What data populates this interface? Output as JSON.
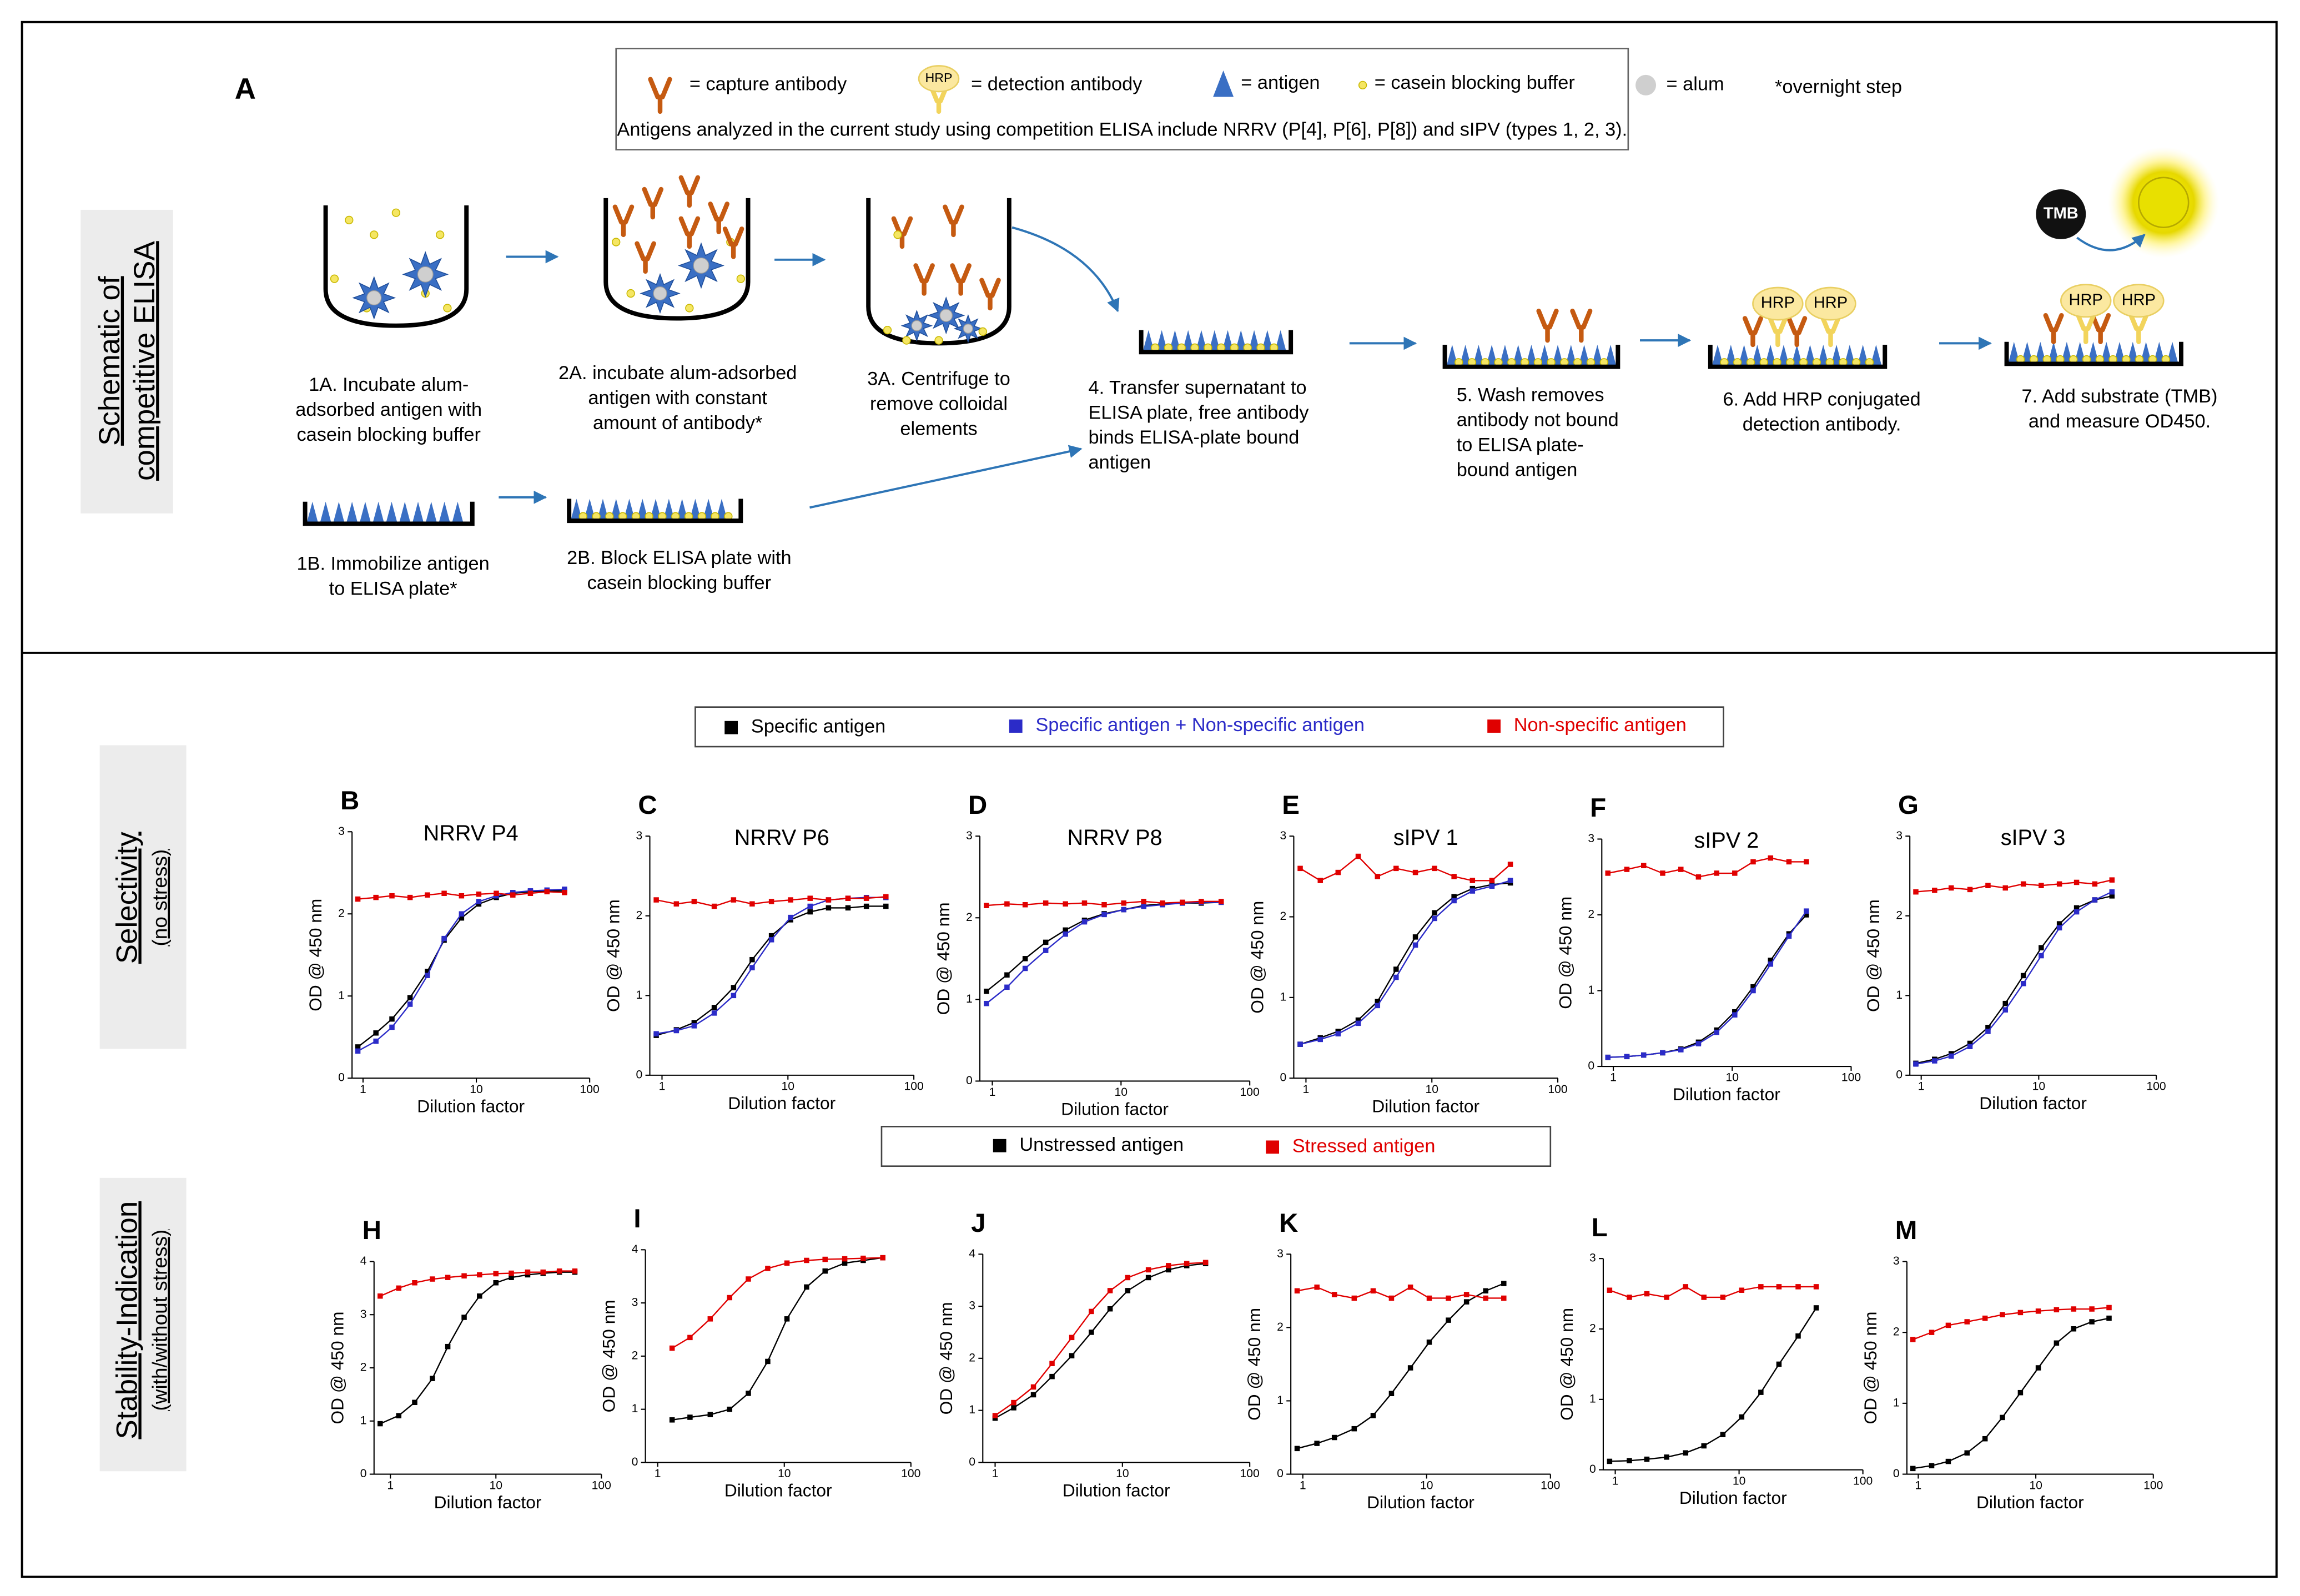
{
  "panel_a": {
    "letter": "A",
    "key": [
      "= capture antibody",
      "= detection antibody",
      "= antigen",
      "= casein blocking buffer",
      "= alum",
      "*overnight step"
    ],
    "note": "Antigens analyzed in the current study using competition ELISA include NRRV (P[4], P[6], P[8]) and sIPV (types 1, 2, 3).",
    "section_label": [
      "Schematic of",
      "competitive ELISA"
    ],
    "icon_labels": {
      "hrp": "HRP",
      "tmb": "TMB"
    },
    "steps": [
      {
        "lines": [
          "1A. Incubate alum-",
          "adsorbed antigen with",
          "casein blocking buffer"
        ]
      },
      {
        "lines": [
          "2A. incubate alum-adsorbed",
          "antigen with constant",
          "amount of antibody*"
        ]
      },
      {
        "lines": [
          "3A. Centrifuge to",
          "remove colloidal",
          "elements"
        ]
      },
      {
        "lines": [
          "4. Transfer supernatant to",
          "ELISA plate, free antibody",
          "binds ELISA-plate bound",
          "antigen"
        ]
      },
      {
        "lines": [
          "5. Wash removes",
          "antibody not bound",
          "to ELISA plate-",
          "bound antigen"
        ]
      },
      {
        "lines": [
          "6. Add HRP conjugated",
          "detection antibody."
        ]
      },
      {
        "lines": [
          "7. Add substrate (TMB)",
          "and measure OD450."
        ]
      },
      {
        "lines": [
          "1B. Immobilize antigen",
          "to ELISA plate*"
        ]
      },
      {
        "lines": [
          "2B. Block ELISA plate with",
          "casein blocking buffer"
        ]
      }
    ]
  },
  "section_labels": {
    "selectivity": [
      "Selectivity",
      "(no stress)"
    ],
    "stability": [
      "Stability-Indication",
      "(with/without stress)"
    ]
  },
  "chart_data": [
    {
      "type": "line",
      "title": "B",
      "subtitle": "NRRV P4",
      "xlabel": "Dilution factor",
      "ylabel": "OD @ 450 nm",
      "log_x": true,
      "x": [
        0.9,
        1.3,
        1.8,
        2.6,
        3.7,
        5.2,
        7.4,
        10.5,
        15,
        21,
        30,
        42,
        60
      ],
      "series": [
        {
          "name": "Specific antigen",
          "color": "#000000",
          "values": [
            0.38,
            0.55,
            0.72,
            0.98,
            1.3,
            1.68,
            1.95,
            2.12,
            2.2,
            2.25,
            2.27,
            2.28,
            2.28
          ]
        },
        {
          "name": "Specific antigen + Non-specific antigen",
          "color": "#2b2bc8",
          "values": [
            0.33,
            0.45,
            0.62,
            0.9,
            1.25,
            1.7,
            2.0,
            2.15,
            2.22,
            2.26,
            2.28,
            2.29,
            2.3
          ]
        },
        {
          "name": "Non-specific antigen",
          "color": "#e00000",
          "values": [
            2.18,
            2.2,
            2.22,
            2.2,
            2.23,
            2.25,
            2.22,
            2.24,
            2.25,
            2.23,
            2.25,
            2.27,
            2.26
          ]
        }
      ],
      "xlim": [
        0.8,
        100
      ],
      "xticks": [
        1,
        10,
        100
      ],
      "ylim": [
        0,
        3
      ],
      "yticks": [
        0,
        1,
        2,
        3
      ]
    },
    {
      "type": "line",
      "title": "C",
      "subtitle": "NRRV P6",
      "xlabel": "Dilution factor",
      "ylabel": "OD @ 450 nm",
      "log_x": true,
      "x": [
        0.9,
        1.3,
        1.8,
        2.6,
        3.7,
        5.2,
        7.4,
        10.5,
        15,
        21,
        30,
        42,
        60
      ],
      "series": [
        {
          "color": "#000000",
          "values": [
            0.5,
            0.57,
            0.66,
            0.85,
            1.1,
            1.45,
            1.75,
            1.95,
            2.05,
            2.1,
            2.1,
            2.12,
            2.12
          ]
        },
        {
          "color": "#2b2bc8",
          "values": [
            0.52,
            0.56,
            0.62,
            0.78,
            1.0,
            1.35,
            1.7,
            1.98,
            2.12,
            2.2,
            2.22,
            2.23,
            2.23
          ]
        },
        {
          "color": "#e00000",
          "values": [
            2.2,
            2.15,
            2.18,
            2.12,
            2.2,
            2.15,
            2.18,
            2.2,
            2.22,
            2.2,
            2.22,
            2.22,
            2.24
          ]
        }
      ],
      "xlim": [
        0.8,
        100
      ],
      "xticks": [
        1,
        10,
        100
      ],
      "ylim": [
        0,
        3
      ],
      "yticks": [
        0,
        1,
        2,
        3
      ]
    },
    {
      "type": "line",
      "title": "D",
      "subtitle": "NRRV P8",
      "xlabel": "Dilution factor",
      "ylabel": "OD @ 450 nm",
      "log_x": true,
      "x": [
        0.9,
        1.3,
        1.8,
        2.6,
        3.7,
        5.2,
        7.4,
        10.5,
        15,
        21,
        30,
        42,
        60
      ],
      "series": [
        {
          "color": "#000000",
          "values": [
            1.1,
            1.3,
            1.5,
            1.7,
            1.85,
            1.97,
            2.05,
            2.1,
            2.15,
            2.17,
            2.18,
            2.18,
            2.19
          ]
        },
        {
          "color": "#2b2bc8",
          "values": [
            0.95,
            1.15,
            1.38,
            1.6,
            1.8,
            1.95,
            2.04,
            2.1,
            2.14,
            2.16,
            2.18,
            2.19,
            2.19
          ]
        },
        {
          "color": "#e00000",
          "values": [
            2.15,
            2.17,
            2.16,
            2.18,
            2.17,
            2.18,
            2.16,
            2.18,
            2.2,
            2.18,
            2.19,
            2.2,
            2.2
          ]
        }
      ],
      "xlim": [
        0.8,
        100
      ],
      "xticks": [
        1,
        10,
        100
      ],
      "ylim": [
        0,
        3
      ],
      "yticks": [
        0,
        1,
        2,
        3
      ]
    },
    {
      "type": "line",
      "title": "E",
      "subtitle": "sIPV 1",
      "xlabel": "Dilution factor",
      "ylabel": "OD @ 450 nm",
      "log_x": true,
      "x": [
        0.9,
        1.3,
        1.8,
        2.6,
        3.7,
        5.2,
        7.4,
        10.5,
        15,
        21,
        30,
        42
      ],
      "series": [
        {
          "color": "#000000",
          "values": [
            0.42,
            0.5,
            0.58,
            0.72,
            0.95,
            1.35,
            1.75,
            2.05,
            2.25,
            2.35,
            2.4,
            2.42
          ]
        },
        {
          "color": "#2b2bc8",
          "values": [
            0.42,
            0.48,
            0.55,
            0.68,
            0.9,
            1.25,
            1.65,
            1.98,
            2.2,
            2.32,
            2.38,
            2.45
          ]
        },
        {
          "color": "#e00000",
          "values": [
            2.6,
            2.45,
            2.55,
            2.75,
            2.5,
            2.6,
            2.55,
            2.6,
            2.5,
            2.45,
            2.45,
            2.65
          ]
        }
      ],
      "xlim": [
        0.8,
        100
      ],
      "xticks": [
        1,
        10,
        100
      ],
      "ylim": [
        0,
        3
      ],
      "yticks": [
        0,
        1,
        2,
        3
      ]
    },
    {
      "type": "line",
      "title": "F",
      "subtitle": "sIPV 2",
      "xlabel": "Dilution factor",
      "ylabel": "OD @ 450 nm",
      "log_x": true,
      "x": [
        0.9,
        1.3,
        1.8,
        2.6,
        3.7,
        5.2,
        7.4,
        10.5,
        15,
        21,
        30,
        42
      ],
      "series": [
        {
          "color": "#000000",
          "values": [
            0.12,
            0.13,
            0.15,
            0.18,
            0.23,
            0.32,
            0.48,
            0.72,
            1.05,
            1.4,
            1.75,
            2.0
          ]
        },
        {
          "color": "#2b2bc8",
          "values": [
            0.12,
            0.13,
            0.15,
            0.18,
            0.22,
            0.3,
            0.45,
            0.68,
            1.0,
            1.35,
            1.72,
            2.05
          ]
        },
        {
          "color": "#e00000",
          "values": [
            2.55,
            2.6,
            2.65,
            2.55,
            2.6,
            2.5,
            2.55,
            2.55,
            2.7,
            2.75,
            2.7,
            2.7
          ]
        }
      ],
      "xlim": [
        0.8,
        100
      ],
      "xticks": [
        1,
        10,
        100
      ],
      "ylim": [
        0,
        3
      ],
      "yticks": [
        0,
        1,
        2,
        3
      ]
    },
    {
      "type": "line",
      "title": "G",
      "subtitle": "sIPV 3",
      "xlabel": "Dilution factor",
      "ylabel": "OD @ 450 nm",
      "log_x": true,
      "x": [
        0.9,
        1.3,
        1.8,
        2.6,
        3.7,
        5.2,
        7.4,
        10.5,
        15,
        21,
        30,
        42
      ],
      "series": [
        {
          "color": "#000000",
          "values": [
            0.15,
            0.2,
            0.27,
            0.4,
            0.6,
            0.9,
            1.25,
            1.6,
            1.9,
            2.1,
            2.2,
            2.25
          ]
        },
        {
          "color": "#2b2bc8",
          "values": [
            0.14,
            0.18,
            0.24,
            0.36,
            0.55,
            0.82,
            1.15,
            1.5,
            1.85,
            2.05,
            2.2,
            2.3
          ]
        },
        {
          "color": "#e00000",
          "values": [
            2.3,
            2.32,
            2.35,
            2.33,
            2.38,
            2.35,
            2.4,
            2.38,
            2.4,
            2.42,
            2.4,
            2.45
          ]
        }
      ],
      "xlim": [
        0.8,
        100
      ],
      "xticks": [
        1,
        10,
        100
      ],
      "ylim": [
        0,
        3
      ],
      "yticks": [
        0,
        1,
        2,
        3
      ]
    },
    {
      "type": "line",
      "title": "H",
      "xlabel": "Dilution factor",
      "ylabel": "OD @ 450 nm",
      "log_x": true,
      "x": [
        0.8,
        1.2,
        1.7,
        2.5,
        3.5,
        5,
        7,
        10,
        14,
        20,
        28,
        40,
        56
      ],
      "series": [
        {
          "name": "Unstressed antigen",
          "color": "#000000",
          "values": [
            0.95,
            1.1,
            1.35,
            1.8,
            2.4,
            2.95,
            3.35,
            3.6,
            3.7,
            3.75,
            3.78,
            3.8,
            3.8
          ]
        },
        {
          "name": "Stressed antigen",
          "color": "#e00000",
          "values": [
            3.35,
            3.5,
            3.6,
            3.67,
            3.7,
            3.73,
            3.75,
            3.77,
            3.78,
            3.8,
            3.8,
            3.82,
            3.82
          ]
        }
      ],
      "xlim": [
        0.7,
        100
      ],
      "xticks": [
        1,
        10,
        100
      ],
      "ylim": [
        0,
        4
      ],
      "yticks": [
        0,
        1,
        2,
        3,
        4
      ]
    },
    {
      "type": "line",
      "title": "I",
      "xlabel": "Dilution factor",
      "ylabel": "OD @ 450 nm",
      "log_x": true,
      "x": [
        1.3,
        1.8,
        2.6,
        3.7,
        5.2,
        7.4,
        10.5,
        15,
        21,
        30,
        42,
        60
      ],
      "series": [
        {
          "color": "#000000",
          "values": [
            0.8,
            0.85,
            0.9,
            1.0,
            1.3,
            1.9,
            2.7,
            3.3,
            3.6,
            3.75,
            3.8,
            3.85
          ]
        },
        {
          "color": "#e00000",
          "values": [
            2.15,
            2.35,
            2.7,
            3.1,
            3.45,
            3.65,
            3.75,
            3.8,
            3.82,
            3.83,
            3.84,
            3.85
          ]
        }
      ],
      "xlim": [
        0.8,
        100
      ],
      "xticks": [
        1,
        10,
        100
      ],
      "ylim": [
        0,
        4
      ],
      "yticks": [
        0,
        1,
        2,
        3,
        4
      ]
    },
    {
      "type": "line",
      "title": "J",
      "xlabel": "Dilution factor",
      "ylabel": "OD @ 450 nm",
      "log_x": true,
      "x": [
        1,
        1.4,
        2,
        2.8,
        4,
        5.7,
        8,
        11,
        16,
        23,
        32,
        45
      ],
      "series": [
        {
          "color": "#000000",
          "values": [
            0.85,
            1.05,
            1.3,
            1.65,
            2.05,
            2.5,
            2.95,
            3.3,
            3.55,
            3.7,
            3.78,
            3.82
          ]
        },
        {
          "color": "#e00000",
          "values": [
            0.9,
            1.15,
            1.45,
            1.9,
            2.4,
            2.9,
            3.3,
            3.55,
            3.7,
            3.78,
            3.82,
            3.84
          ]
        }
      ],
      "xlim": [
        0.8,
        100
      ],
      "xticks": [
        1,
        10,
        100
      ],
      "ylim": [
        0,
        4
      ],
      "yticks": [
        0,
        1,
        2,
        3,
        4
      ]
    },
    {
      "type": "line",
      "title": "K",
      "xlabel": "Dilution factor",
      "ylabel": "OD @ 450 nm",
      "log_x": true,
      "x": [
        0.9,
        1.3,
        1.8,
        2.6,
        3.7,
        5.2,
        7.4,
        10.5,
        15,
        21,
        30,
        42
      ],
      "series": [
        {
          "color": "#000000",
          "values": [
            0.35,
            0.42,
            0.5,
            0.62,
            0.8,
            1.1,
            1.45,
            1.8,
            2.1,
            2.35,
            2.5,
            2.6
          ]
        },
        {
          "color": "#e00000",
          "values": [
            2.5,
            2.55,
            2.45,
            2.4,
            2.5,
            2.4,
            2.55,
            2.4,
            2.4,
            2.45,
            2.4,
            2.4
          ]
        }
      ],
      "xlim": [
        0.8,
        100
      ],
      "xticks": [
        1,
        10,
        100
      ],
      "ylim": [
        0,
        3
      ],
      "yticks": [
        0,
        1,
        2,
        3
      ]
    },
    {
      "type": "line",
      "title": "L",
      "xlabel": "Dilution factor",
      "ylabel": "OD @ 450 nm",
      "log_x": true,
      "x": [
        0.9,
        1.3,
        1.8,
        2.6,
        3.7,
        5.2,
        7.4,
        10.5,
        15,
        21,
        30,
        42
      ],
      "series": [
        {
          "color": "#000000",
          "values": [
            0.12,
            0.13,
            0.15,
            0.18,
            0.24,
            0.34,
            0.5,
            0.75,
            1.1,
            1.5,
            1.9,
            2.3
          ]
        },
        {
          "color": "#e00000",
          "values": [
            2.55,
            2.45,
            2.5,
            2.45,
            2.6,
            2.45,
            2.45,
            2.55,
            2.6,
            2.6,
            2.6,
            2.6
          ]
        }
      ],
      "xlim": [
        0.8,
        100
      ],
      "xticks": [
        1,
        10,
        100
      ],
      "ylim": [
        0,
        3
      ],
      "yticks": [
        0,
        1,
        2,
        3
      ]
    },
    {
      "type": "line",
      "title": "M",
      "xlabel": "Dilution factor",
      "ylabel": "OD @ 450 nm",
      "log_x": true,
      "x": [
        0.9,
        1.3,
        1.8,
        2.6,
        3.7,
        5.2,
        7.4,
        10.5,
        15,
        21,
        30,
        42
      ],
      "series": [
        {
          "color": "#000000",
          "values": [
            0.08,
            0.12,
            0.18,
            0.3,
            0.5,
            0.8,
            1.15,
            1.5,
            1.85,
            2.05,
            2.15,
            2.2
          ]
        },
        {
          "color": "#e00000",
          "values": [
            1.9,
            2.0,
            2.1,
            2.15,
            2.2,
            2.25,
            2.28,
            2.3,
            2.32,
            2.33,
            2.33,
            2.35
          ]
        }
      ],
      "xlim": [
        0.8,
        100
      ],
      "xticks": [
        1,
        10,
        100
      ],
      "ylim": [
        0,
        3
      ],
      "yticks": [
        0,
        1,
        2,
        3
      ]
    }
  ]
}
